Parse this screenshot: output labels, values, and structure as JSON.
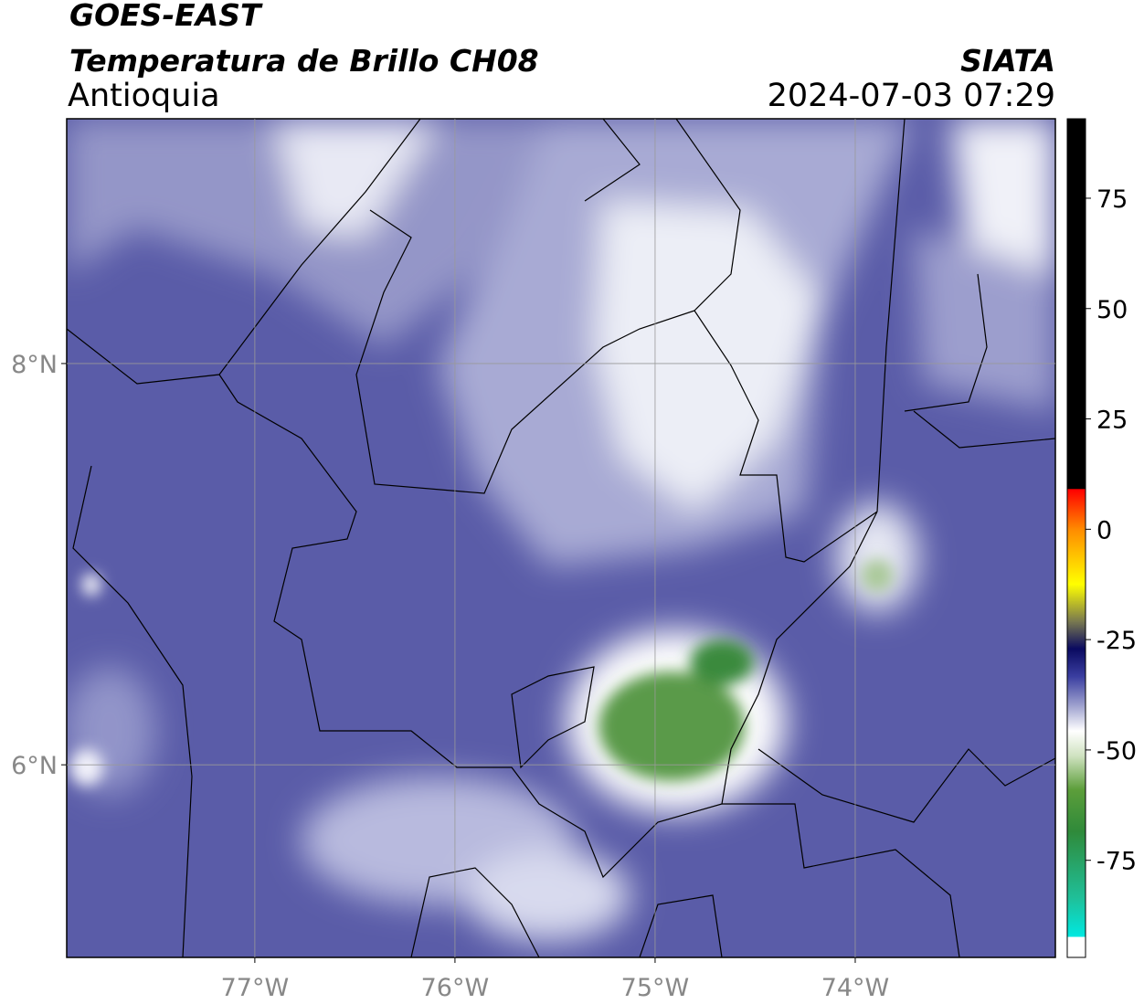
{
  "header": {
    "satellite": "GOES-EAST",
    "product": "Temperatura de Brillo CH08",
    "region": "Antioquia",
    "agency": "SIATA",
    "timestamp": "2024-07-03 07:29"
  },
  "map": {
    "xlim": [
      -77.94,
      -73.0
    ],
    "ylim": [
      5.04,
      9.22
    ],
    "xticks": [
      {
        "value": -77,
        "label": "77°W"
      },
      {
        "value": -76,
        "label": "76°W"
      },
      {
        "value": -75,
        "label": "75°W"
      },
      {
        "value": -74,
        "label": "74°W"
      }
    ],
    "yticks": [
      {
        "value": 8,
        "label": "8°N"
      },
      {
        "value": 6,
        "label": "6°N"
      }
    ],
    "grid": true
  },
  "colorbar": {
    "lim": [
      -97,
      93
    ],
    "ticks": [
      75,
      50,
      25,
      0,
      -25,
      -50,
      -75
    ]
  }
}
